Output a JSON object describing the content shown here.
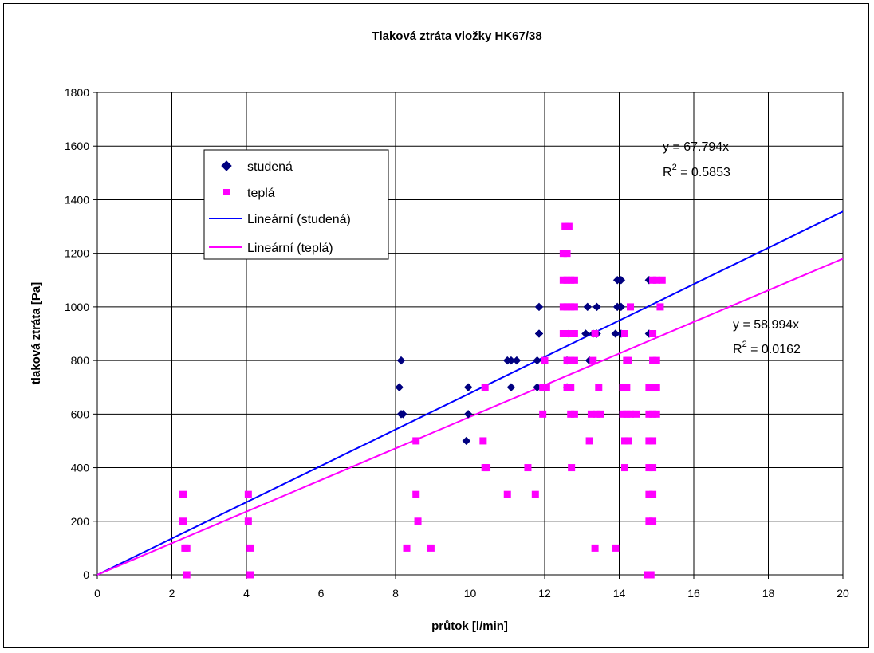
{
  "chart_data": {
    "type": "scatter",
    "title": "Tlaková ztráta vložky HK67/38",
    "xlabel": "průtok [l/min]",
    "ylabel": "tlaková ztráta [Pa]",
    "xlim": [
      0,
      20
    ],
    "ylim": [
      0,
      1800
    ],
    "xticks": [
      "0",
      "2",
      "4",
      "6",
      "8",
      "10",
      "12",
      "14",
      "16",
      "18",
      "20"
    ],
    "yticks": [
      "0",
      "200",
      "400",
      "600",
      "800",
      "1000",
      "1200",
      "1400",
      "1600",
      "1800"
    ],
    "grid": true,
    "legend_position": "upper-left",
    "legend": [
      {
        "label": "studená",
        "marker": "diamond",
        "color": "#000080"
      },
      {
        "label": "teplá",
        "marker": "square",
        "color": "#FF00FF"
      },
      {
        "label": "Lineární (studená)",
        "marker": "line",
        "color": "#0000FF"
      },
      {
        "label": "Lineární (teplá)",
        "marker": "line",
        "color": "#FF00FF"
      }
    ],
    "series": [
      {
        "name": "studená",
        "marker": "diamond",
        "color": "#000080",
        "points": [
          [
            8.1,
            700
          ],
          [
            8.15,
            800
          ],
          [
            8.15,
            600
          ],
          [
            8.2,
            600
          ],
          [
            9.9,
            500
          ],
          [
            9.95,
            600
          ],
          [
            9.95,
            700
          ],
          [
            11.0,
            800
          ],
          [
            11.1,
            800
          ],
          [
            11.1,
            700
          ],
          [
            11.25,
            800
          ],
          [
            11.8,
            800
          ],
          [
            11.8,
            700
          ],
          [
            11.85,
            900
          ],
          [
            11.85,
            1000
          ],
          [
            12.6,
            800
          ],
          [
            12.6,
            700
          ],
          [
            12.65,
            900
          ],
          [
            13.1,
            900
          ],
          [
            13.15,
            1000
          ],
          [
            13.2,
            800
          ],
          [
            13.3,
            900
          ],
          [
            13.4,
            1000
          ],
          [
            13.4,
            900
          ],
          [
            13.9,
            900
          ],
          [
            13.95,
            1100
          ],
          [
            13.95,
            1000
          ],
          [
            14.05,
            1000
          ],
          [
            14.05,
            1100
          ],
          [
            14.05,
            900
          ],
          [
            14.8,
            1100
          ],
          [
            14.8,
            900
          ]
        ]
      },
      {
        "name": "teplá",
        "marker": "square",
        "color": "#FF00FF",
        "points": [
          [
            2.3,
            300
          ],
          [
            2.3,
            200
          ],
          [
            2.35,
            100
          ],
          [
            2.4,
            100
          ],
          [
            2.4,
            0
          ],
          [
            4.05,
            300
          ],
          [
            4.05,
            200
          ],
          [
            4.1,
            100
          ],
          [
            4.1,
            0
          ],
          [
            8.3,
            100
          ],
          [
            8.55,
            500
          ],
          [
            8.55,
            300
          ],
          [
            8.6,
            200
          ],
          [
            8.95,
            100
          ],
          [
            10.35,
            500
          ],
          [
            10.4,
            700
          ],
          [
            10.4,
            400
          ],
          [
            10.45,
            400
          ],
          [
            11.0,
            300
          ],
          [
            11.55,
            400
          ],
          [
            11.75,
            300
          ],
          [
            11.95,
            600
          ],
          [
            11.95,
            700
          ],
          [
            12.0,
            800
          ],
          [
            12.05,
            700
          ],
          [
            12.5,
            1200
          ],
          [
            12.5,
            1100
          ],
          [
            12.5,
            1000
          ],
          [
            12.5,
            900
          ],
          [
            12.55,
            1300
          ],
          [
            12.6,
            1200
          ],
          [
            12.6,
            1100
          ],
          [
            12.6,
            1000
          ],
          [
            12.6,
            900
          ],
          [
            12.6,
            800
          ],
          [
            12.6,
            700
          ],
          [
            12.65,
            1300
          ],
          [
            12.7,
            1100
          ],
          [
            12.7,
            1000
          ],
          [
            12.7,
            900
          ],
          [
            12.7,
            800
          ],
          [
            12.7,
            700
          ],
          [
            12.7,
            600
          ],
          [
            12.72,
            400
          ],
          [
            12.8,
            1100
          ],
          [
            12.8,
            1000
          ],
          [
            12.8,
            900
          ],
          [
            12.8,
            800
          ],
          [
            12.8,
            600
          ],
          [
            13.2,
            500
          ],
          [
            13.25,
            600
          ],
          [
            13.3,
            800
          ],
          [
            13.35,
            100
          ],
          [
            13.35,
            900
          ],
          [
            13.4,
            600
          ],
          [
            13.45,
            700
          ],
          [
            13.5,
            600
          ],
          [
            13.9,
            100
          ],
          [
            14.1,
            700
          ],
          [
            14.1,
            600
          ],
          [
            14.15,
            900
          ],
          [
            14.15,
            500
          ],
          [
            14.15,
            400
          ],
          [
            14.2,
            800
          ],
          [
            14.2,
            700
          ],
          [
            14.2,
            600
          ],
          [
            14.25,
            500
          ],
          [
            14.25,
            800
          ],
          [
            14.3,
            1000
          ],
          [
            14.3,
            600
          ],
          [
            14.45,
            600
          ],
          [
            14.75,
            0
          ],
          [
            14.8,
            700
          ],
          [
            14.8,
            600
          ],
          [
            14.8,
            500
          ],
          [
            14.8,
            400
          ],
          [
            14.8,
            300
          ],
          [
            14.8,
            200
          ],
          [
            14.85,
            0
          ],
          [
            14.9,
            1100
          ],
          [
            14.9,
            900
          ],
          [
            14.9,
            800
          ],
          [
            14.9,
            700
          ],
          [
            14.9,
            600
          ],
          [
            14.9,
            500
          ],
          [
            14.9,
            400
          ],
          [
            14.9,
            300
          ],
          [
            14.9,
            200
          ],
          [
            15.0,
            1100
          ],
          [
            15.0,
            800
          ],
          [
            15.0,
            700
          ],
          [
            15.0,
            600
          ],
          [
            15.1,
            1000
          ],
          [
            15.15,
            1100
          ]
        ]
      }
    ],
    "trendlines": [
      {
        "name": "Lineární (studená)",
        "color": "#0000FF",
        "slope": 67.794,
        "intercept": 0,
        "equation": "y = 67.794x",
        "r2_prefix": "R",
        "r2_sup": "2",
        "r2_value": " = 0.5853"
      },
      {
        "name": "Lineární (teplá)",
        "color": "#FF00FF",
        "slope": 58.994,
        "intercept": 0,
        "equation": "y = 58.994x",
        "r2_prefix": "R",
        "r2_sup": "2",
        "r2_value": " = 0.0162"
      }
    ]
  }
}
